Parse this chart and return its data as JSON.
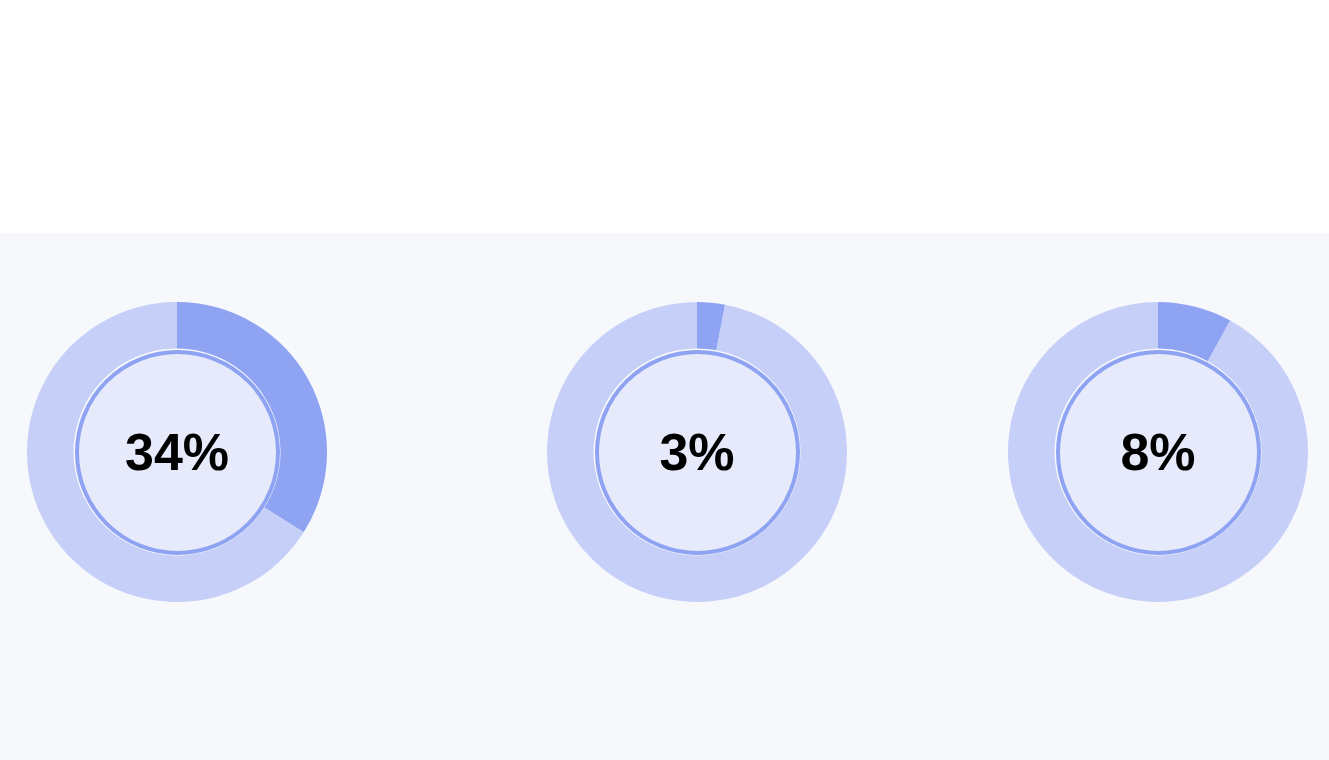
{
  "chart_data": [
    {
      "type": "donut",
      "categories": [
        null,
        null
      ],
      "values": [
        34,
        66
      ],
      "colors": [
        "#8fa3f3",
        "#c5cff8"
      ],
      "annotations": [
        "34%"
      ]
    },
    {
      "type": "donut",
      "categories": [
        null,
        null
      ],
      "values": [
        3,
        97
      ],
      "colors": [
        "#8fa3f3",
        "#c5cff8"
      ],
      "annotations": [
        "3%"
      ]
    },
    {
      "type": "donut",
      "categories": [
        null,
        null
      ],
      "values": [
        8,
        92
      ],
      "colors": [
        "#8fa3f3",
        "#c5cff8"
      ],
      "annotations": [
        "8%"
      ]
    }
  ]
}
